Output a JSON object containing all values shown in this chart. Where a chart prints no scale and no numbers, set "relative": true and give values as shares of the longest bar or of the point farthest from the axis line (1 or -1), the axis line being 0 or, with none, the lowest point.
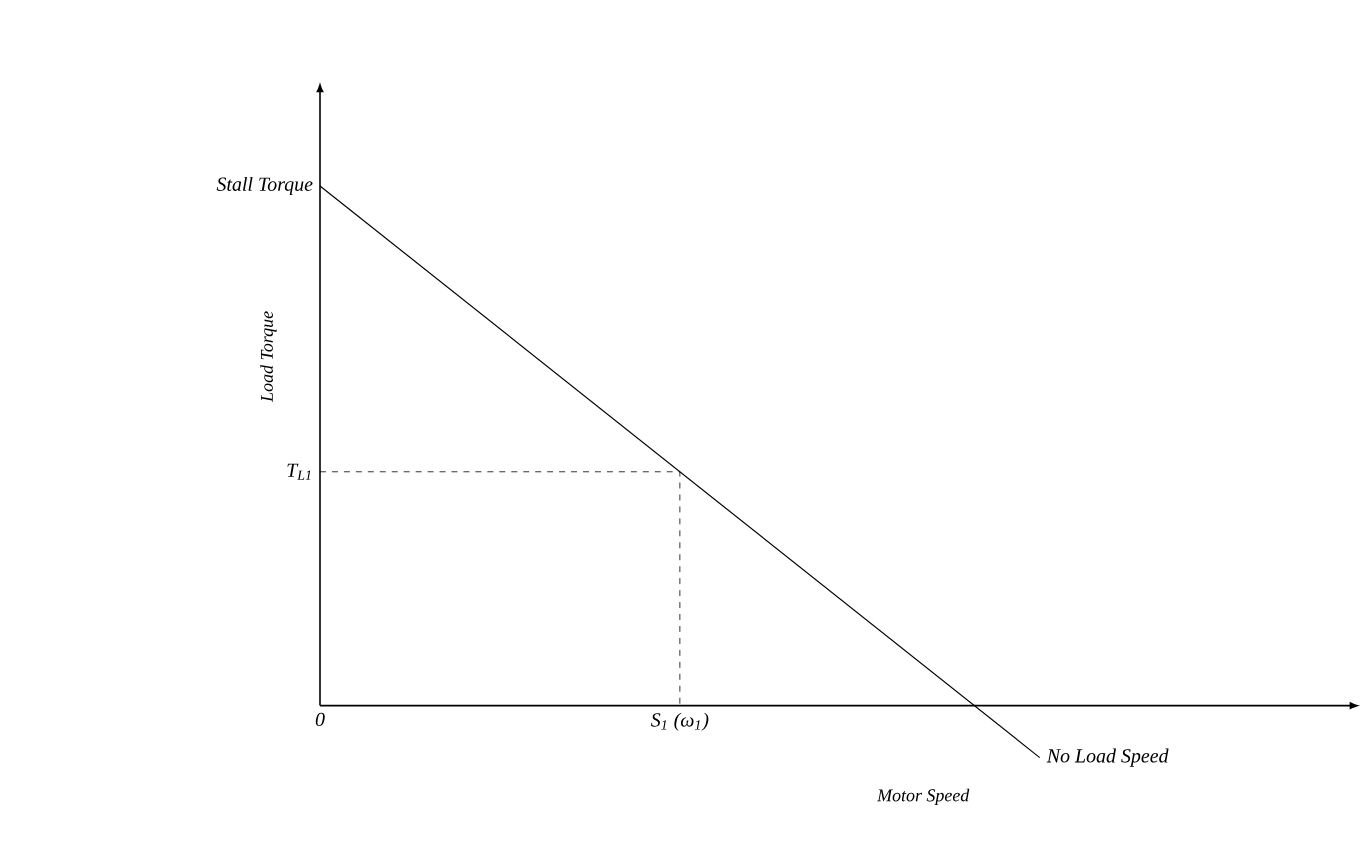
{
  "chart_data": {
    "type": "line",
    "relative": true,
    "xlabel": "Motor Speed",
    "ylabel": "Load Torque",
    "categories": [
      "0",
      "S$_{1}$ (ω$_{1}$)",
      null
    ],
    "marker": "none",
    "line_style": "solid",
    "series": [
      {
        "color": "#000000",
        "values": [
          1,
          0.45,
          -0.1
        ]
      }
    ],
    "ref_lines": [
      {
        "axis": "y",
        "value": 0.45,
        "label": "T$_{L1}$",
        "line_style": "dashed"
      }
    ],
    "annotations": [
      "Stall Torque",
      "No Load Speed"
    ]
  }
}
